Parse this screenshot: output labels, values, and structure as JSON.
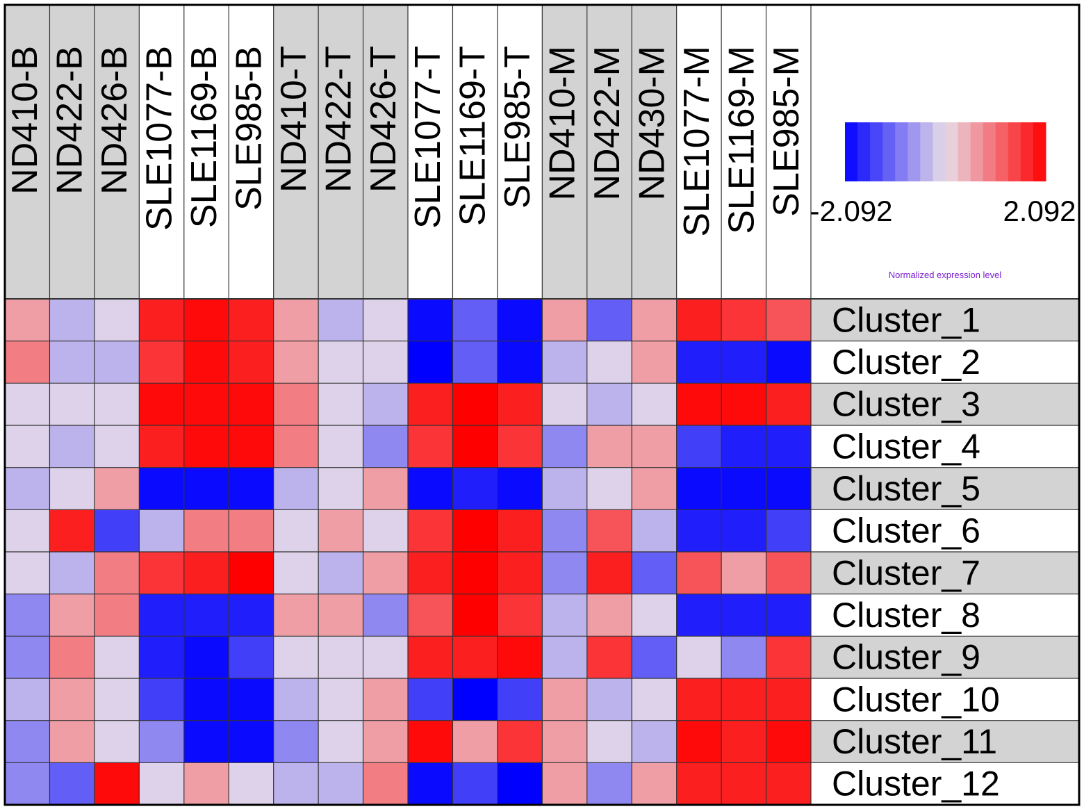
{
  "chart_data": {
    "type": "heatmap",
    "columns": [
      "ND410-B",
      "ND422-B",
      "ND426-B",
      "SLE1077-B",
      "SLE1169-B",
      "SLE985-B",
      "ND410-T",
      "ND422-T",
      "ND426-T",
      "SLE1077-T",
      "SLE1169-T",
      "SLE985-T",
      "ND410-M",
      "ND422-M",
      "ND430-M",
      "SLE1077-M",
      "SLE1169-M",
      "SLE985-M"
    ],
    "column_groups_shaded": [
      true,
      true,
      true,
      false,
      false,
      false,
      true,
      true,
      true,
      false,
      false,
      false,
      true,
      true,
      true,
      false,
      false,
      false
    ],
    "rows": [
      "Cluster_1",
      "Cluster_2",
      "Cluster_3",
      "Cluster_4",
      "Cluster_5",
      "Cluster_6",
      "Cluster_7",
      "Cluster_8",
      "Cluster_9",
      "Cluster_10",
      "Cluster_11",
      "Cluster_12"
    ],
    "row_groups_shaded": [
      true,
      false,
      true,
      false,
      true,
      false,
      true,
      false,
      true,
      false,
      true,
      false
    ],
    "values": [
      [
        0.6,
        -0.4,
        -0.1,
        1.8,
        2.0,
        1.8,
        0.6,
        -0.4,
        -0.1,
        -2.0,
        -1.2,
        -2.0,
        0.6,
        -1.2,
        0.6,
        1.8,
        1.6,
        1.3
      ],
      [
        0.9,
        -0.4,
        -0.4,
        1.6,
        2.0,
        1.8,
        0.6,
        -0.1,
        -0.1,
        -2.1,
        -1.2,
        -2.0,
        -0.4,
        -0.1,
        0.6,
        -1.8,
        -1.8,
        -2.0
      ],
      [
        -0.1,
        -0.1,
        -0.1,
        2.0,
        2.0,
        2.0,
        0.9,
        -0.1,
        -0.4,
        1.8,
        2.1,
        1.8,
        -0.1,
        -0.4,
        -0.1,
        2.0,
        2.0,
        1.8
      ],
      [
        -0.1,
        -0.4,
        -0.1,
        1.8,
        2.0,
        2.0,
        0.9,
        -0.1,
        -0.8,
        1.6,
        2.1,
        1.6,
        -0.8,
        0.6,
        0.6,
        -1.5,
        -1.8,
        -1.8
      ],
      [
        -0.4,
        -0.1,
        0.6,
        -2.0,
        -2.0,
        -2.0,
        -0.4,
        -0.1,
        0.6,
        -2.0,
        -1.8,
        -2.0,
        -0.4,
        -0.1,
        0.6,
        -2.0,
        -2.0,
        -2.0
      ],
      [
        -0.1,
        1.8,
        -1.5,
        -0.4,
        0.9,
        0.9,
        -0.1,
        0.6,
        -0.1,
        1.6,
        2.1,
        1.8,
        -0.8,
        1.3,
        -0.4,
        -1.8,
        -1.8,
        -1.5
      ],
      [
        -0.1,
        -0.4,
        0.9,
        1.6,
        1.8,
        2.1,
        -0.1,
        -0.4,
        0.6,
        1.8,
        2.1,
        1.8,
        -0.8,
        1.8,
        -1.2,
        1.3,
        0.6,
        1.3
      ],
      [
        -0.8,
        0.6,
        0.9,
        -1.8,
        -1.8,
        -1.8,
        0.6,
        0.6,
        -0.8,
        1.3,
        2.1,
        1.6,
        -0.4,
        0.6,
        -0.1,
        -1.8,
        -1.8,
        -1.8
      ],
      [
        -0.8,
        0.9,
        -0.1,
        -1.8,
        -2.0,
        -1.5,
        -0.1,
        -0.1,
        -0.1,
        1.8,
        1.8,
        2.0,
        -0.4,
        1.6,
        -1.2,
        -0.1,
        -0.8,
        1.6
      ],
      [
        -0.4,
        0.6,
        -0.1,
        -1.5,
        -2.0,
        -2.0,
        -0.4,
        -0.1,
        0.6,
        -1.5,
        -2.1,
        -1.5,
        0.6,
        -0.4,
        -0.1,
        1.8,
        1.8,
        1.8
      ],
      [
        -0.8,
        0.6,
        -0.1,
        -0.8,
        -2.0,
        -2.0,
        -0.8,
        -0.1,
        0.6,
        2.0,
        0.6,
        1.6,
        0.6,
        -0.1,
        -0.4,
        2.0,
        1.8,
        2.0
      ],
      [
        -0.8,
        -1.2,
        2.0,
        -0.1,
        0.6,
        -0.1,
        -0.4,
        -0.4,
        0.9,
        -2.0,
        -1.5,
        -2.1,
        0.6,
        -0.8,
        0.6,
        1.8,
        1.8,
        1.8
      ]
    ],
    "color_scale": {
      "min": -2.092,
      "max": 2.092,
      "min_label": "-2.092",
      "max_label": "2.092",
      "low_color": "#0000ff",
      "mid_color": "#e8dde8",
      "high_color": "#ff0000",
      "legend_title": "Normalized expression level",
      "legend_title_color": "#7a1fd1"
    },
    "header_shade_color": "#d3d3d3",
    "grid": true
  }
}
